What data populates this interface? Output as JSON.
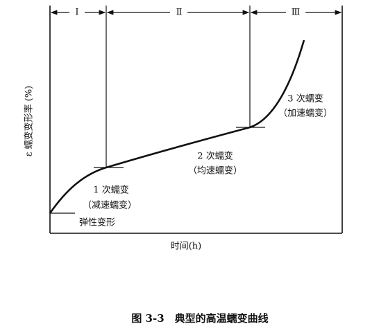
{
  "axes": {
    "y_label": "ε 蠕变变形率 (%)",
    "x_label": "时间(h)"
  },
  "stages": [
    "Ⅰ",
    "Ⅱ",
    "Ⅲ"
  ],
  "annotations": {
    "primary": {
      "title": "1 次蠕变",
      "note": "（减速蠕变）"
    },
    "secondary": {
      "title": "2 次蠕变",
      "note": "（均速蠕变）"
    },
    "tertiary": {
      "title": "3 次蠕变",
      "note": "（加速蠕变）"
    },
    "elastic": "弹性变形"
  },
  "caption": "图 3-3　典型的高温蠕变曲线"
}
